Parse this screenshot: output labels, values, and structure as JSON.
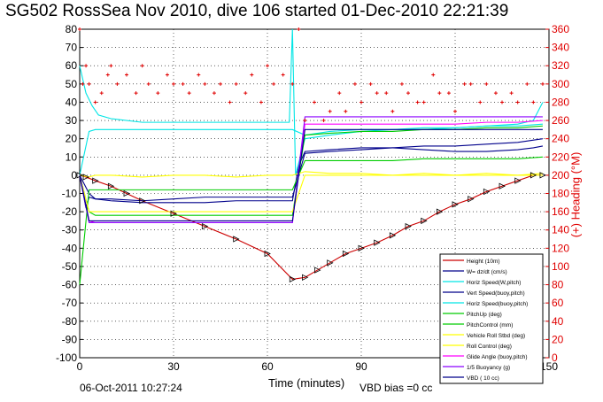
{
  "chart_data": {
    "type": "line",
    "title": "SG502 RossSea Nov 2010, dive 106 started 01-Dec-2010 22:21:39",
    "xlabel": "Time (minutes)",
    "ylabel_left": "",
    "ylabel_right": "(+) Heading (°M)",
    "xlim": [
      0,
      150
    ],
    "ylim_left": [
      -100,
      80
    ],
    "ylim_right": [
      0,
      360
    ],
    "x_ticks": [
      "0",
      "30",
      "60",
      "90",
      "120",
      "150"
    ],
    "y_left_ticks": [
      "80",
      "70",
      "60",
      "50",
      "40",
      "30",
      "20",
      "10",
      "0",
      "-10",
      "-20",
      "-30",
      "-40",
      "-50",
      "-60",
      "-70",
      "-80",
      "-90",
      "-100"
    ],
    "y_right_ticks": [
      "360",
      "340",
      "320",
      "300",
      "280",
      "260",
      "240",
      "220",
      "200",
      "180",
      "160",
      "140",
      "120",
      "100",
      "80",
      "60",
      "40",
      "20",
      "0"
    ],
    "grid": true,
    "legend_position": "bottom-right",
    "series": [
      {
        "name": "Height (10m)",
        "color": "#cc0000",
        "x": [
          0,
          2,
          5,
          10,
          15,
          20,
          30,
          40,
          50,
          60,
          68,
          72,
          76,
          80,
          85,
          90,
          95,
          100,
          105,
          110,
          115,
          120,
          125,
          130,
          135,
          140,
          145,
          148
        ],
        "y": [
          0,
          -1,
          -3,
          -6,
          -10,
          -14,
          -21,
          -28,
          -35,
          -43,
          -57,
          -56,
          -52,
          -48,
          -43,
          -40,
          -37,
          -33,
          -28,
          -25,
          -20,
          -16,
          -13,
          -9,
          -6,
          -3,
          0,
          0
        ]
      },
      {
        "name": "W= dz/dt (cm/s)",
        "color": "#00008b",
        "x": [
          0,
          2,
          3,
          5,
          10,
          20,
          30,
          40,
          50,
          60,
          68,
          70,
          72,
          80,
          90,
          100,
          110,
          120,
          130,
          140,
          145,
          148
        ],
        "y": [
          0,
          -18,
          -12,
          -13,
          -14,
          -15,
          -15,
          -15,
          -14,
          -14,
          -14,
          5,
          13,
          14,
          15,
          15,
          14,
          13,
          13,
          14,
          15,
          16
        ]
      },
      {
        "name": "Horiz Speed(W,pitch)",
        "color": "#00e5e5",
        "x": [
          0,
          2,
          4,
          6,
          10,
          20,
          30,
          40,
          50,
          60,
          67,
          68,
          69,
          72,
          80,
          90,
          100,
          110,
          120,
          130,
          140,
          145,
          148
        ],
        "y": [
          60,
          45,
          38,
          33,
          31,
          29,
          29,
          29,
          29,
          29,
          29,
          80,
          0,
          20,
          22,
          24,
          25,
          25,
          26,
          27,
          28,
          30,
          40
        ]
      },
      {
        "name": "Vert Speed(buoy,pitch)",
        "color": "#00008b",
        "x": [
          0,
          3,
          5,
          10,
          20,
          30,
          40,
          50,
          60,
          68,
          72,
          80,
          90,
          100,
          110,
          120,
          130,
          140,
          148
        ],
        "y": [
          0,
          -10,
          -13,
          -13,
          -14,
          -13,
          -12,
          -12,
          -12,
          -12,
          12,
          13,
          14,
          15,
          16,
          16,
          17,
          18,
          20
        ]
      },
      {
        "name": "Horiz Speed(buoy,pitch)",
        "color": "#00e5e5",
        "x": [
          0,
          3,
          5,
          10,
          20,
          30,
          40,
          50,
          60,
          68,
          72,
          80,
          90,
          100,
          110,
          120,
          130,
          140,
          148
        ],
        "y": [
          0,
          24,
          25,
          25,
          25,
          25,
          25,
          25,
          25,
          25,
          22,
          24,
          25,
          25,
          26,
          26,
          27,
          27,
          28
        ]
      },
      {
        "name": "PitchUp (deg)",
        "color": "#00cc00",
        "x": [
          0,
          3,
          5,
          10,
          20,
          30,
          40,
          50,
          60,
          68,
          72,
          80,
          90,
          100,
          110,
          120,
          130,
          140,
          148
        ],
        "y": [
          0,
          -20,
          -22,
          -22,
          -22,
          -22,
          -22,
          -22,
          -22,
          -22,
          22,
          23,
          24,
          24,
          25,
          25,
          26,
          26,
          27
        ]
      },
      {
        "name": "PitchControl (mm)",
        "color": "#00cc00",
        "x": [
          0,
          3,
          5,
          10,
          20,
          30,
          40,
          50,
          60,
          68,
          72,
          80,
          90,
          100,
          110,
          120,
          130,
          140,
          148
        ],
        "y": [
          -60,
          -8,
          -8,
          -8,
          -8,
          -8,
          -8,
          -8,
          -8,
          -8,
          8,
          8,
          8,
          8,
          9,
          9,
          9,
          9,
          10
        ]
      },
      {
        "name": "Vehicle Roll Stbd (deg)",
        "color": "#ffff00",
        "x": [
          0,
          3,
          5,
          10,
          20,
          30,
          40,
          50,
          60,
          68,
          72,
          80,
          90,
          100,
          110,
          120,
          130,
          140,
          148
        ],
        "y": [
          0,
          -1,
          0,
          0,
          -1,
          0,
          0,
          -1,
          0,
          0,
          2,
          1,
          1,
          0,
          1,
          0,
          1,
          0,
          1
        ]
      },
      {
        "name": "Roll Control (deg)",
        "color": "#ffff00",
        "x": [
          0,
          3,
          5,
          10,
          20,
          30,
          40,
          50,
          60,
          68,
          72,
          80,
          90,
          100,
          110,
          120,
          130,
          140,
          148
        ],
        "y": [
          0,
          -20,
          -20,
          -20,
          -20,
          -20,
          -20,
          -20,
          -20,
          -20,
          0,
          0,
          0,
          0,
          0,
          0,
          0,
          0,
          0
        ]
      },
      {
        "name": "Glide Angle (buoy,pitch)",
        "color": "#ff00ff",
        "x": [
          0,
          3,
          5,
          10,
          20,
          30,
          40,
          50,
          60,
          68,
          72,
          80,
          90,
          100,
          110,
          120,
          130,
          140,
          148
        ],
        "y": [
          0,
          -25,
          -26,
          -26,
          -26,
          -26,
          -26,
          -26,
          -26,
          -26,
          28,
          28,
          28,
          28,
          28,
          28,
          29,
          29,
          30
        ]
      },
      {
        "name": "1/5 Buoyancy (g)",
        "color": "#8b00ff",
        "x": [
          0,
          3,
          5,
          10,
          20,
          30,
          40,
          50,
          60,
          68,
          72,
          80,
          90,
          100,
          110,
          120,
          130,
          140,
          148
        ],
        "y": [
          0,
          -26,
          -26,
          -26,
          -26,
          -26,
          -26,
          -26,
          -26,
          -26,
          32,
          32,
          32,
          32,
          32,
          32,
          32,
          32,
          32
        ]
      },
      {
        "name": "VBD ( 10 cc)",
        "color": "#00008b",
        "x": [
          0,
          3,
          5,
          10,
          20,
          30,
          40,
          50,
          60,
          68,
          72,
          80,
          90,
          100,
          110,
          120,
          130,
          140,
          148
        ],
        "y": [
          0,
          -25,
          -25,
          -25,
          -25,
          -25,
          -25,
          -25,
          -25,
          -25,
          25,
          25,
          25,
          25,
          25,
          25,
          25,
          25,
          25
        ]
      }
    ],
    "heading": {
      "name": "Heading",
      "color": "#e00000",
      "x": [
        0,
        1,
        2,
        3,
        5,
        7,
        9,
        10,
        12,
        15,
        18,
        20,
        22,
        25,
        28,
        30,
        33,
        35,
        38,
        40,
        43,
        45,
        48,
        50,
        53,
        55,
        58,
        60,
        62,
        65,
        68,
        70,
        72,
        75,
        78,
        80,
        83,
        85,
        88,
        90,
        93,
        95,
        98,
        100,
        103,
        105,
        108,
        110,
        113,
        115,
        118,
        120,
        123,
        125,
        128,
        130,
        133,
        135,
        138,
        140,
        143,
        145,
        148
      ],
      "y": [
        360,
        300,
        320,
        300,
        280,
        290,
        310,
        320,
        300,
        310,
        290,
        320,
        300,
        290,
        310,
        300,
        300,
        290,
        310,
        300,
        290,
        300,
        280,
        300,
        290,
        310,
        280,
        320,
        300,
        310,
        300,
        360,
        260,
        280,
        260,
        270,
        290,
        270,
        300,
        280,
        300,
        290,
        290,
        270,
        300,
        290,
        280,
        280,
        310,
        290,
        290,
        270,
        300,
        300,
        280,
        300,
        290,
        280,
        290,
        280,
        300,
        280,
        300
      ]
    }
  },
  "footer": {
    "date": "06-Oct-2011 10:27:24",
    "vbd_bias": "VBD bias =0 cc"
  }
}
